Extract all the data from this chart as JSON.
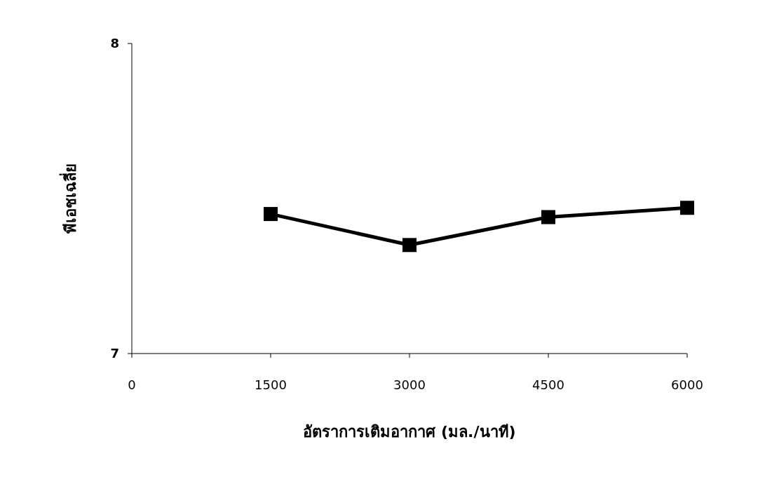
{
  "chart_data": {
    "type": "line",
    "xlabel": "อัตราการเติมอากาศ (มล./นาที)",
    "ylabel": "พีเอชเฉลี่ย",
    "x": [
      1500,
      3000,
      4500,
      6000
    ],
    "series": [
      {
        "color": "#000000",
        "values": [
          7.45,
          7.35,
          7.44,
          7.47
        ]
      }
    ],
    "xlim": [
      0,
      6000
    ],
    "xticks": [
      0,
      1500,
      3000,
      4500,
      6000
    ],
    "ylim": [
      7,
      8
    ],
    "yticks": [
      7,
      8
    ],
    "marker": "square",
    "line_style": "solid",
    "grid": false
  }
}
